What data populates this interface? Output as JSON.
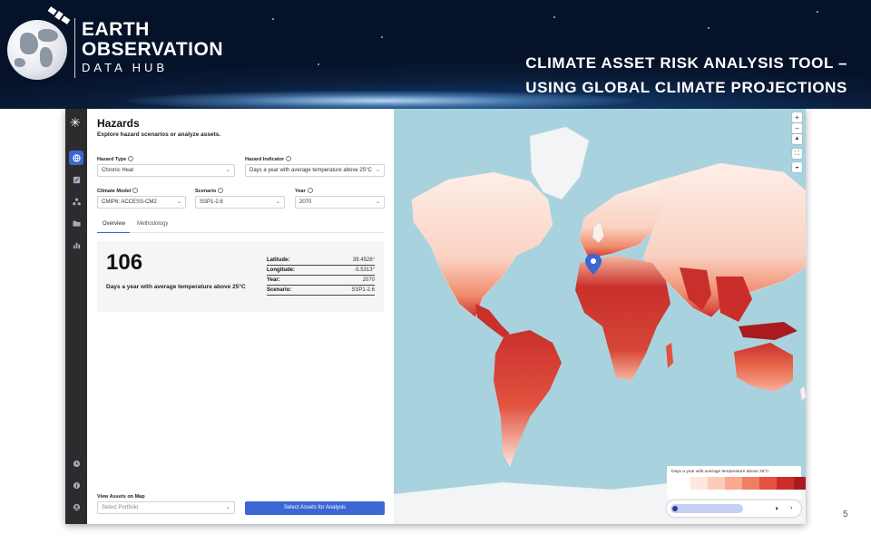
{
  "banner": {
    "logo_line1": "EARTH",
    "logo_line2": "OBSERVATION",
    "logo_line3": "DATA HUB",
    "title_line1": "CLIMATE ASSET RISK ANALYSIS TOOL –",
    "title_line2": "USING GLOBAL CLIMATE PROJECTIONS"
  },
  "rail": {
    "items": [
      {
        "icon": "globe-icon",
        "active": true
      },
      {
        "icon": "edit-icon",
        "active": false
      },
      {
        "icon": "network-icon",
        "active": false
      },
      {
        "icon": "folder-icon",
        "active": false
      },
      {
        "icon": "bar-chart-icon",
        "active": false
      }
    ],
    "bottom": [
      {
        "icon": "clock-icon"
      },
      {
        "icon": "info-icon"
      },
      {
        "icon": "user-icon"
      }
    ]
  },
  "panel": {
    "title": "Hazards",
    "subtitle": "Explore hazard scenarios or analyze assets.",
    "hazard_type": {
      "label": "Hazard Type",
      "value": "Chronic Heat"
    },
    "hazard_indicator": {
      "label": "Hazard Indicator",
      "value": "Days a year with average temperature above 25°C"
    },
    "climate_model": {
      "label": "Climate Model",
      "value": "CMIP6: ACCESS-CM2"
    },
    "scenario": {
      "label": "Scenario",
      "value": "SSP1-2.6"
    },
    "year": {
      "label": "Year",
      "value": "2070"
    },
    "tabs": [
      "Overview",
      "Methodology"
    ],
    "result": {
      "value": "106",
      "description": "Days a year with average temperature above 25°C",
      "rows": [
        {
          "key": "Latitude:",
          "value": "39.4528°"
        },
        {
          "key": "Longitude:",
          "value": "-5.5313°"
        },
        {
          "key": "Year:",
          "value": "2070"
        },
        {
          "key": "Scenario:",
          "value": "SSP1-2.6"
        }
      ]
    },
    "assets": {
      "label": "View Assets on Map",
      "placeholder": "Select Portfolio",
      "button": "Select Assets for Analysis"
    }
  },
  "map": {
    "controls": [
      "+",
      "−",
      "▲",
      "⛶",
      "◒"
    ],
    "legend_title": "Days a year with average temperature above 25°C",
    "legend_colors": [
      "#fde7de",
      "#fbcdb9",
      "#f8a98e",
      "#f07e62",
      "#e2523f",
      "#cb2e2a",
      "#a91b1f"
    ],
    "colors": {
      "ocean": "#a8d3de",
      "land_cold": "#fdeee8",
      "land_mid": "#f6b7a0",
      "land_hot": "#c9302c",
      "marker": "#3b66d4"
    }
  },
  "page_number": "5"
}
